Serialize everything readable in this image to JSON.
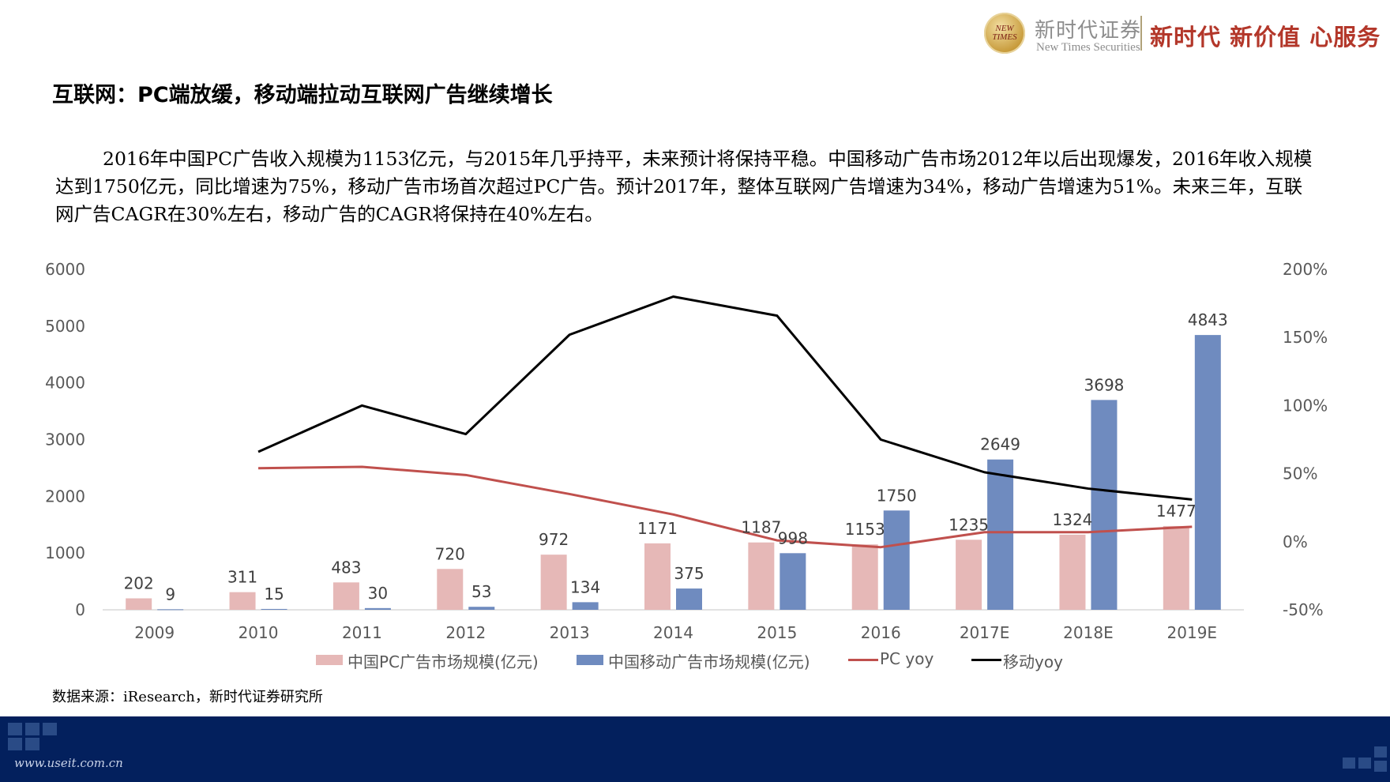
{
  "header": {
    "logo_badge_text": "NEW TIMES",
    "logo_cn": "新时代证券",
    "logo_en": "New Times Securities",
    "slogan": "新时代 新价值 心服务"
  },
  "page_title": "互联网：PC端放缓，移动端拉动互联网广告继续增长",
  "body_text": "2016年中国PC广告收入规模为1153亿元，与2015年几乎持平，未来预计将保持平稳。中国移动广告市场2012年以后出现爆发，2016年收入规模达到1750亿元，同比增速为75%，移动广告市场首次超过PC广告。预计2017年，整体互联网广告增速为34%，移动广告增速为51%。未来三年，互联网广告CAGR在30%左右，移动广告的CAGR将保持在40%左右。",
  "source": "数据来源：iResearch，新时代证券研究所",
  "footer_url": "www.useit.com.cn",
  "colors": {
    "pc_bar": "#e6b8b7",
    "mobile_bar": "#6f8bbf",
    "pc_yoy_line": "#c0504d",
    "mobile_yoy_line": "#000000",
    "slogan": "#b3372a",
    "footer_bg": "#03205d"
  },
  "chart_data": {
    "type": "bar",
    "categories": [
      "2009",
      "2010",
      "2011",
      "2012",
      "2013",
      "2014",
      "2015",
      "2016",
      "2017E",
      "2018E",
      "2019E"
    ],
    "series": [
      {
        "name": "中国PC广告市场规模(亿元)",
        "type": "bar",
        "axis": "left",
        "values": [
          202,
          311,
          483,
          720,
          972,
          1171,
          1187,
          1153,
          1235,
          1324,
          1477
        ]
      },
      {
        "name": "中国移动广告市场规模(亿元)",
        "type": "bar",
        "axis": "left",
        "values": [
          9,
          15,
          30,
          53,
          134,
          375,
          998,
          1750,
          2649,
          3698,
          4843
        ]
      },
      {
        "name": "PC yoy",
        "type": "line",
        "axis": "right",
        "values": [
          null,
          54,
          55,
          49,
          35,
          20,
          1,
          -4,
          7,
          7,
          11
        ]
      },
      {
        "name": "移动yoy",
        "type": "line",
        "axis": "right",
        "values": [
          null,
          66,
          100,
          79,
          152,
          180,
          166,
          75,
          51,
          39,
          31
        ]
      }
    ],
    "left_axis": {
      "min": 0,
      "max": 6000,
      "ticks": [
        "0",
        "1000",
        "2000",
        "3000",
        "4000",
        "5000",
        "6000"
      ]
    },
    "right_axis": {
      "min": -50,
      "max": 200,
      "ticks": [
        "-50%",
        "0%",
        "50%",
        "100%",
        "150%",
        "200%"
      ]
    },
    "grid": false,
    "legend": "bottom"
  }
}
